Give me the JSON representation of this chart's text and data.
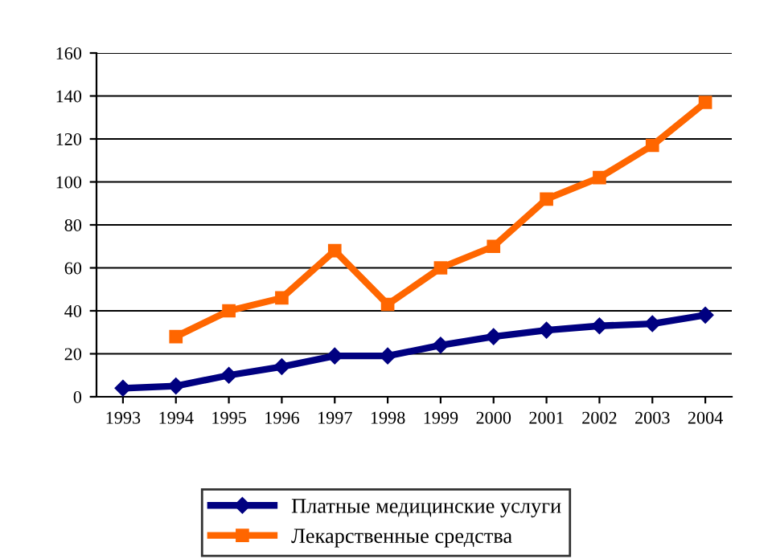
{
  "chart_data": {
    "type": "line",
    "categories": [
      "1993",
      "1994",
      "1995",
      "1996",
      "1997",
      "1998",
      "1999",
      "2000",
      "2001",
      "2002",
      "2003",
      "2004"
    ],
    "series": [
      {
        "name": "Платные медицинские услуги",
        "color": "#000080",
        "marker": "diamond",
        "values": [
          4,
          5,
          10,
          14,
          19,
          19,
          24,
          28,
          31,
          33,
          34,
          38
        ]
      },
      {
        "name": "Лекарственные средства",
        "color": "#ff6600",
        "marker": "square",
        "values": [
          null,
          28,
          40,
          46,
          68,
          43,
          60,
          70,
          92,
          102,
          117,
          137
        ]
      }
    ],
    "ylim": [
      0,
      160
    ],
    "yticks": [
      0,
      20,
      40,
      60,
      80,
      100,
      120,
      140,
      160
    ],
    "grid": "y",
    "legend": "bottom",
    "line_style": "solid"
  }
}
